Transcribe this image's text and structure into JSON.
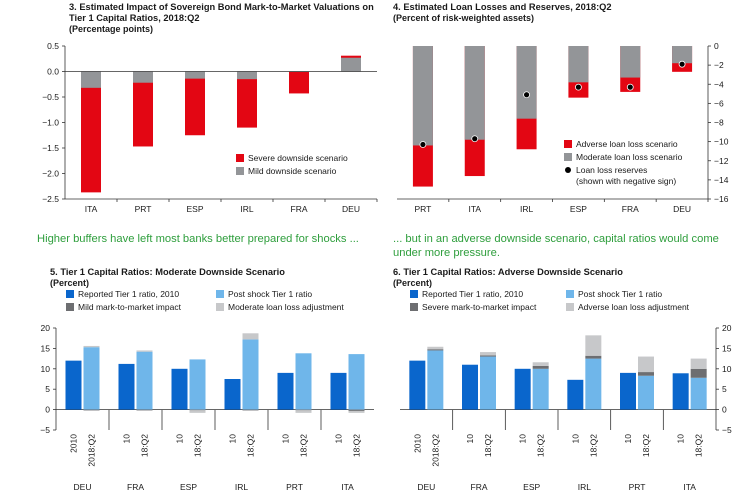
{
  "colors": {
    "red": "#e30613",
    "gray": "#939598",
    "dark_gray": "#6d6e71",
    "light_gray": "#c7c8ca",
    "dark_blue": "#0a66cc",
    "light_blue": "#6fb6ea",
    "caption_green": "#2e9e3c"
  },
  "captions": {
    "left": "Higher buffers have left most banks better prepared for shocks ...",
    "right_line1": "... but in an adverse downside scenario, capital ratios would come",
    "right_line2": "under more pressure."
  },
  "chart_data": [
    {
      "id": "p3",
      "type": "bar",
      "title": "3. Estimated Impact of Sovereign Bond Mark-to-Market Valuations on",
      "title2": "Tier 1 Capital Ratios, 2018:Q2",
      "subtitle": "(Percentage points)",
      "categories": [
        "ITA",
        "PRT",
        "ESP",
        "IRL",
        "FRA",
        "DEU"
      ],
      "ylim": [
        -2.5,
        0.5
      ],
      "yticks": [
        0.5,
        0.0,
        -0.5,
        -1.0,
        -1.5,
        -2.0,
        -2.5
      ],
      "ytick_labels": [
        "0.5",
        "0.0",
        "−0.5",
        "−1.0",
        "−1.5",
        "−2.0",
        "−2.5"
      ],
      "series": [
        {
          "name": "Severe downside scenario",
          "color": "red",
          "values": [
            -2.37,
            -1.47,
            -1.25,
            -1.1,
            -0.43,
            0.31
          ]
        },
        {
          "name": "Mild downside scenario",
          "color": "gray",
          "values": [
            -0.32,
            -0.22,
            -0.14,
            -0.15,
            -0.01,
            0.27
          ]
        }
      ]
    },
    {
      "id": "p4",
      "type": "bar",
      "title": "4. Estimated Loan Losses and Reserves, 2018:Q2",
      "subtitle": "(Percent of risk-weighted assets)",
      "categories": [
        "PRT",
        "ITA",
        "IRL",
        "ESP",
        "FRA",
        "DEU"
      ],
      "ylim": [
        -16,
        0
      ],
      "yticks": [
        0,
        -2,
        -4,
        -6,
        -8,
        -10,
        -12,
        -14,
        -16
      ],
      "ytick_labels": [
        "0",
        "−2",
        "−4",
        "−6",
        "−8",
        "−10",
        "−12",
        "−14",
        "−16"
      ],
      "series": [
        {
          "name": "Adverse loan loss scenario",
          "color": "red",
          "values": [
            -14.7,
            -13.6,
            -10.8,
            -5.4,
            -4.8,
            -2.7
          ]
        },
        {
          "name": "Moderate loan loss scenario",
          "color": "gray",
          "values": [
            -10.4,
            -9.8,
            -7.6,
            -3.8,
            -3.3,
            -1.8
          ]
        },
        {
          "name": "Loan loss reserves\n(shown with negative sign)",
          "color": "black",
          "values": [
            -10.3,
            -9.7,
            -5.1,
            -4.3,
            -4.3,
            -1.9
          ]
        }
      ]
    },
    {
      "id": "p5",
      "type": "bar",
      "title": "5. Tier 1 Capital Ratios: Moderate Downside Scenario",
      "subtitle": "(Percent)",
      "categories": [
        "DEU",
        "FRA",
        "ESP",
        "IRL",
        "PRT",
        "ITA"
      ],
      "bar_labels": [
        "2010",
        "2018:Q2",
        "10",
        "18:Q2",
        "10",
        "18:Q2",
        "10",
        "18:Q2",
        "10",
        "18:Q2",
        "10",
        "18:Q2"
      ],
      "ylim": [
        -5,
        20
      ],
      "yticks": [
        20,
        15,
        10,
        5,
        0,
        -5
      ],
      "ytick_labels": [
        "20",
        "15",
        "10",
        "5",
        "0",
        "−5"
      ],
      "series": [
        {
          "name": "Reported Tier 1 ratio, 2010",
          "color": "dark_blue",
          "values": [
            12.0,
            11.2,
            10.0,
            7.5,
            9.0,
            9.0
          ]
        },
        {
          "name": "Post shock Tier 1 ratio",
          "color": "light_blue",
          "values": [
            15.3,
            14.2,
            12.3,
            17.2,
            13.8,
            13.6
          ]
        },
        {
          "name": "Mild mark-to-market impact",
          "color": "dark_gray",
          "values": [
            -0.2,
            -0.2,
            -0.1,
            -0.2,
            -0.1,
            -0.3
          ]
        },
        {
          "name": "Moderate loan loss adjustment",
          "color": "light_gray",
          "values": [
            0.3,
            0.3,
            -0.8,
            1.5,
            -0.8,
            -0.8
          ]
        }
      ]
    },
    {
      "id": "p6",
      "type": "bar",
      "title": "6. Tier 1 Capital Ratios: Adverse Downside Scenario",
      "subtitle": "(Percent)",
      "categories": [
        "DEU",
        "FRA",
        "ESP",
        "IRL",
        "PRT",
        "ITA"
      ],
      "bar_labels": [
        "2010",
        "2018:Q2",
        "10",
        "18:Q2",
        "10",
        "18:Q2",
        "10",
        "18:Q2",
        "10",
        "18:Q2",
        "10",
        "18:Q2"
      ],
      "ylim": [
        -5,
        20
      ],
      "yticks": [
        20,
        15,
        10,
        5,
        0,
        -5
      ],
      "ytick_labels": [
        "20",
        "15",
        "10",
        "5",
        "0",
        "−5"
      ],
      "series": [
        {
          "name": "Reported Tier 1 ratio, 2010",
          "color": "dark_blue",
          "values": [
            12.0,
            11.0,
            10.0,
            7.3,
            9.0,
            8.9
          ]
        },
        {
          "name": "Post shock Tier 1 ratio",
          "color": "light_blue",
          "values": [
            14.5,
            13.0,
            10.0,
            12.5,
            8.3,
            7.8
          ]
        },
        {
          "name": "Severe mark-to-market impact",
          "color": "dark_gray",
          "values": [
            0.3,
            0.3,
            0.7,
            0.7,
            0.9,
            2.2
          ]
        },
        {
          "name": "Adverse loan loss adjustment",
          "color": "light_gray",
          "values": [
            0.6,
            0.8,
            0.9,
            5.0,
            3.8,
            2.5
          ]
        }
      ]
    }
  ]
}
